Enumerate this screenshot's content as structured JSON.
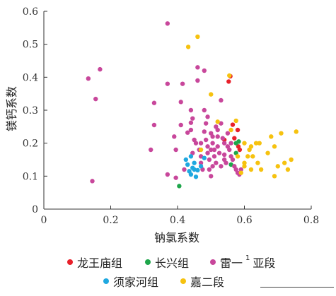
{
  "chart_data": {
    "type": "scatter",
    "xlabel": "钠氯系数",
    "ylabel": "镁钙系数",
    "xlim": [
      0,
      0.8
    ],
    "ylim": [
      0,
      0.6
    ],
    "x_ticks": [
      0,
      0.2,
      0.4,
      0.6,
      0.8
    ],
    "y_ticks": [
      0,
      0.1,
      0.2,
      0.3,
      0.4,
      0.5,
      0.6
    ],
    "x_tick_labels": [
      "0",
      "0.2",
      "0.4",
      "0.6",
      "0.8"
    ],
    "y_tick_labels": [
      "0",
      "0.1",
      "0.2",
      "0.3",
      "0.4",
      "0.5",
      "0.6"
    ],
    "grid": false,
    "legend_position": "bottom",
    "series": [
      {
        "name": "龙王庙组",
        "color": "#e8202a",
        "points": [
          [
            0.558,
            0.403
          ],
          [
            0.553,
            0.387
          ],
          [
            0.565,
            0.256
          ],
          [
            0.58,
            0.24
          ],
          [
            0.57,
            0.215
          ],
          [
            0.54,
            0.21
          ],
          [
            0.582,
            0.19
          ],
          [
            0.586,
            0.18
          ]
        ]
      },
      {
        "name": "长兴组",
        "color": "#1ea64b",
        "points": [
          [
            0.405,
            0.07
          ],
          [
            0.56,
            0.135
          ],
          [
            0.575,
            0.17
          ],
          [
            0.583,
            0.205
          ],
          [
            0.575,
            0.2
          ]
        ]
      },
      {
        "name": "雷一¹亚段",
        "label_main": "雷一",
        "label_sup": "1",
        "label_tail": "亚段",
        "color": "#c8479b",
        "points": [
          [
            0.37,
            0.563
          ],
          [
            0.168,
            0.424
          ],
          [
            0.133,
            0.396
          ],
          [
            0.155,
            0.334
          ],
          [
            0.145,
            0.085
          ],
          [
            0.33,
            0.322
          ],
          [
            0.33,
            0.255
          ],
          [
            0.32,
            0.18
          ],
          [
            0.37,
            0.38
          ],
          [
            0.37,
            0.105
          ],
          [
            0.39,
            0.22
          ],
          [
            0.395,
            0.18
          ],
          [
            0.395,
            0.095
          ],
          [
            0.41,
            0.255
          ],
          [
            0.415,
            0.38
          ],
          [
            0.41,
            0.325
          ],
          [
            0.42,
            0.12
          ],
          [
            0.43,
            0.232
          ],
          [
            0.44,
            0.3
          ],
          [
            0.44,
            0.262
          ],
          [
            0.44,
            0.24
          ],
          [
            0.445,
            0.275
          ],
          [
            0.445,
            0.17
          ],
          [
            0.45,
            0.21
          ],
          [
            0.455,
            0.2
          ],
          [
            0.46,
            0.43
          ],
          [
            0.46,
            0.39
          ],
          [
            0.465,
            0.18
          ],
          [
            0.47,
            0.16
          ],
          [
            0.47,
            0.14
          ],
          [
            0.475,
            0.12
          ],
          [
            0.48,
            0.42
          ],
          [
            0.48,
            0.3
          ],
          [
            0.485,
            0.26
          ],
          [
            0.485,
            0.21
          ],
          [
            0.49,
            0.19
          ],
          [
            0.49,
            0.17
          ],
          [
            0.495,
            0.15
          ],
          [
            0.495,
            0.12
          ],
          [
            0.5,
            0.1
          ],
          [
            0.5,
            0.23
          ],
          [
            0.505,
            0.22
          ],
          [
            0.505,
            0.2
          ],
          [
            0.51,
            0.18
          ],
          [
            0.51,
            0.16
          ],
          [
            0.515,
            0.14
          ],
          [
            0.515,
            0.25
          ],
          [
            0.52,
            0.22
          ],
          [
            0.52,
            0.19
          ],
          [
            0.525,
            0.17
          ],
          [
            0.53,
            0.13
          ],
          [
            0.53,
            0.33
          ],
          [
            0.535,
            0.215
          ],
          [
            0.54,
            0.2
          ],
          [
            0.54,
            0.165
          ],
          [
            0.545,
            0.14
          ],
          [
            0.55,
            0.23
          ],
          [
            0.55,
            0.19
          ],
          [
            0.555,
            0.18
          ],
          [
            0.56,
            0.16
          ],
          [
            0.565,
            0.15
          ],
          [
            0.57,
            0.13
          ],
          [
            0.575,
            0.12
          ],
          [
            0.58,
            0.11
          ],
          [
            0.585,
            0.105
          ],
          [
            0.59,
            0.12
          ],
          [
            0.47,
            0.2
          ],
          [
            0.48,
            0.235
          ],
          [
            0.49,
            0.28
          ],
          [
            0.505,
            0.13
          ],
          [
            0.52,
            0.24
          ],
          [
            0.53,
            0.26
          ],
          [
            0.54,
            0.15
          ],
          [
            0.56,
            0.2
          ],
          [
            0.5,
            0.18
          ]
        ]
      },
      {
        "name": "须家河组",
        "color": "#1fa8e0",
        "points": [
          [
            0.425,
            0.15
          ],
          [
            0.43,
            0.135
          ],
          [
            0.435,
            0.115
          ],
          [
            0.44,
            0.105
          ],
          [
            0.445,
            0.125
          ],
          [
            0.45,
            0.14
          ],
          [
            0.455,
            0.098
          ],
          [
            0.46,
            0.118
          ],
          [
            0.47,
            0.13
          ],
          [
            0.44,
            0.16
          ],
          [
            0.45,
            0.12
          ],
          [
            0.48,
            0.155
          ]
        ]
      },
      {
        "name": "嘉二段",
        "color": "#f6c20f",
        "points": [
          [
            0.432,
            0.492
          ],
          [
            0.46,
            0.523
          ],
          [
            0.555,
            0.405
          ],
          [
            0.5,
            0.348
          ],
          [
            0.52,
            0.265
          ],
          [
            0.575,
            0.268
          ],
          [
            0.47,
            0.18
          ],
          [
            0.56,
            0.24
          ],
          [
            0.6,
            0.2
          ],
          [
            0.615,
            0.18
          ],
          [
            0.625,
            0.16
          ],
          [
            0.635,
            0.2
          ],
          [
            0.64,
            0.14
          ],
          [
            0.645,
            0.2
          ],
          [
            0.61,
            0.16
          ],
          [
            0.6,
            0.13
          ],
          [
            0.59,
            0.11
          ],
          [
            0.62,
            0.12
          ],
          [
            0.65,
            0.12
          ],
          [
            0.67,
            0.17
          ],
          [
            0.68,
            0.22
          ],
          [
            0.69,
            0.1
          ],
          [
            0.69,
            0.19
          ],
          [
            0.7,
            0.13
          ],
          [
            0.71,
            0.23
          ],
          [
            0.72,
            0.14
          ],
          [
            0.73,
            0.12
          ],
          [
            0.74,
            0.15
          ],
          [
            0.755,
            0.235
          ],
          [
            0.62,
            0.19
          ],
          [
            0.58,
            0.16
          ],
          [
            0.6,
            0.14
          ]
        ]
      }
    ]
  }
}
